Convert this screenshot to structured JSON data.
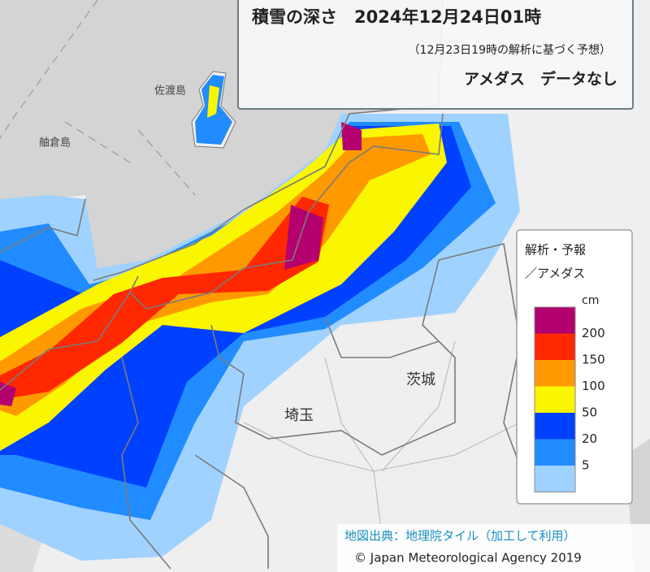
{
  "title": "積雪の深さ　2024年12月24日01時",
  "subtitle": "（12月23日19時の解析に基づく予想）",
  "notice": "アメダス　データなし",
  "legend": {
    "heading": [
      "解析・予報",
      "／アメダス"
    ],
    "unit": "cm",
    "thresholds": [
      "200",
      "150",
      "100",
      "50",
      "20",
      "5"
    ],
    "colors": [
      "#b4006e",
      "#ff2800",
      "#ff9900",
      "#faf500",
      "#0041ff",
      "#218cff",
      "#a0d2ff"
    ]
  },
  "places": [
    "佐渡島",
    "舳倉島",
    "埼玉",
    "茨城"
  ],
  "attribution": {
    "source": "地図出典：地理院タイル（加工して利用）",
    "copyright": "© Japan Meteorological Agency 2019"
  }
}
